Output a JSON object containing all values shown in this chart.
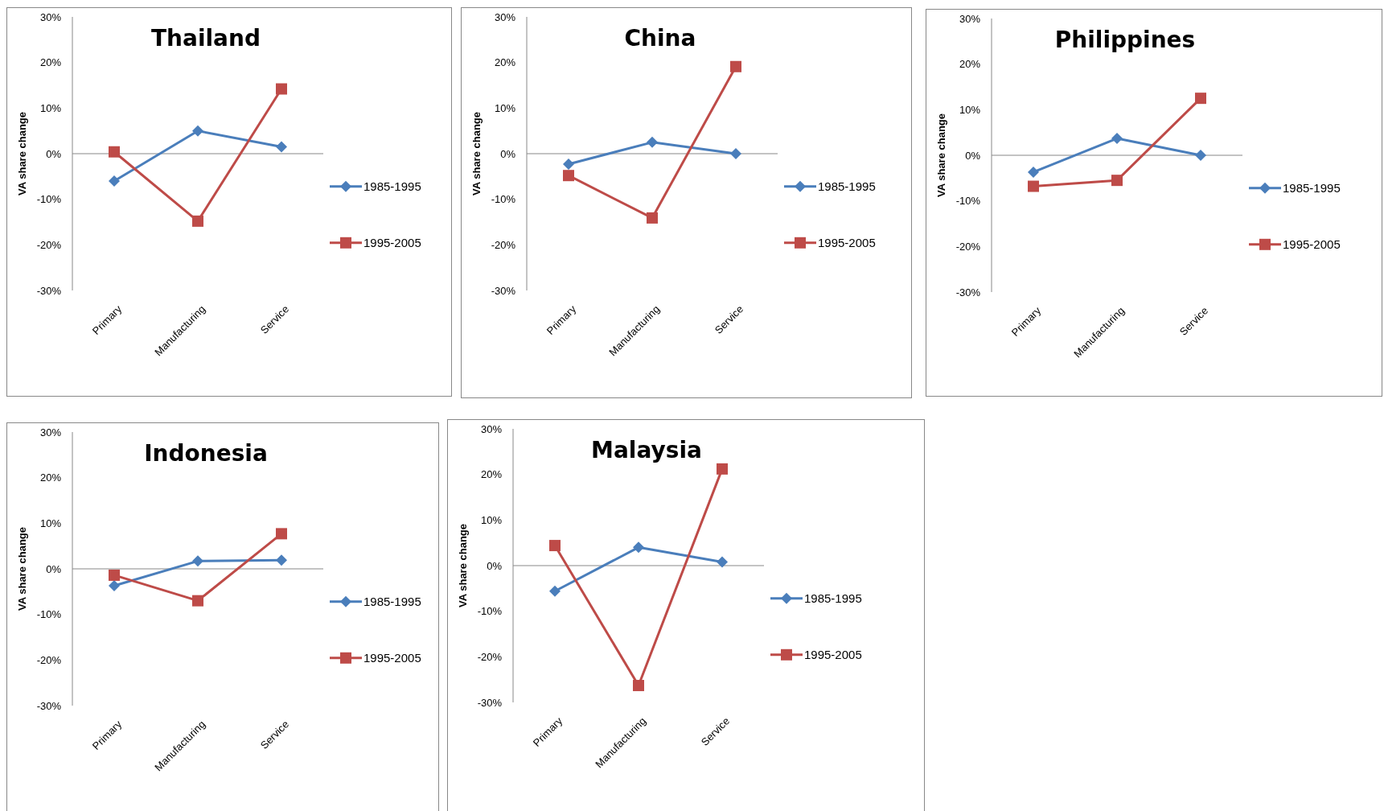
{
  "chart_data": [
    {
      "type": "line",
      "title": "Thailand",
      "ylabel": "VA share change",
      "categories": [
        "Primary",
        "Manufacturing",
        "Service"
      ],
      "ylim": [
        -30,
        30
      ],
      "yticks": [
        {
          "value": 30,
          "label": "30%"
        },
        {
          "value": 20,
          "label": "20%"
        },
        {
          "value": 10,
          "label": "10%"
        },
        {
          "value": 0,
          "label": "0%"
        },
        {
          "value": -10,
          "label": "-10%"
        },
        {
          "value": -20,
          "label": "-20%"
        },
        {
          "value": -30,
          "label": "-30%"
        }
      ],
      "legend": "right",
      "series": [
        {
          "name": "1985-1995",
          "color": "#4a7ebb",
          "marker": "diamond",
          "values": [
            -6,
            5,
            1.5
          ]
        },
        {
          "name": "1995-2005",
          "color": "#be4b48",
          "marker": "square",
          "values": [
            0.4,
            -14.8,
            14.2
          ]
        }
      ]
    },
    {
      "type": "line",
      "title": "China",
      "ylabel": "VA share change",
      "categories": [
        "Primary",
        "Manufacturing",
        "Service"
      ],
      "ylim": [
        -30,
        30
      ],
      "yticks": [
        {
          "value": 30,
          "label": "30%"
        },
        {
          "value": 20,
          "label": "20%"
        },
        {
          "value": 10,
          "label": "10%"
        },
        {
          "value": 0,
          "label": "0%"
        },
        {
          "value": -10,
          "label": "-10%"
        },
        {
          "value": -20,
          "label": "-20%"
        },
        {
          "value": -30,
          "label": "-30%"
        }
      ],
      "legend": "right",
      "series": [
        {
          "name": "1985-1995",
          "color": "#4a7ebb",
          "marker": "diamond",
          "values": [
            -2.3,
            2.5,
            0
          ]
        },
        {
          "name": "1995-2005",
          "color": "#be4b48",
          "marker": "square",
          "values": [
            -4.8,
            -14.1,
            19.1
          ]
        }
      ]
    },
    {
      "type": "line",
      "title": "Philippines",
      "ylabel": "VA share change",
      "categories": [
        "Primary",
        "Manufacturing",
        "Service"
      ],
      "ylim": [
        -30,
        30
      ],
      "yticks": [
        {
          "value": 30,
          "label": "30%"
        },
        {
          "value": 20,
          "label": "20%"
        },
        {
          "value": 10,
          "label": "10%"
        },
        {
          "value": 0,
          "label": "0%"
        },
        {
          "value": -10,
          "label": "-10%"
        },
        {
          "value": -20,
          "label": "-20%"
        },
        {
          "value": -30,
          "label": "-30%"
        }
      ],
      "legend": "right",
      "series": [
        {
          "name": "1985-1995",
          "color": "#4a7ebb",
          "marker": "diamond",
          "values": [
            -3.7,
            3.7,
            0
          ]
        },
        {
          "name": "1995-2005",
          "color": "#be4b48",
          "marker": "square",
          "values": [
            -6.8,
            -5.5,
            12.5
          ]
        }
      ]
    },
    {
      "type": "line",
      "title": "Indonesia",
      "ylabel": "VA share change",
      "categories": [
        "Primary",
        "Manufacturing",
        "Service"
      ],
      "ylim": [
        -30,
        30
      ],
      "yticks": [
        {
          "value": 30,
          "label": "30%"
        },
        {
          "value": 20,
          "label": "20%"
        },
        {
          "value": 10,
          "label": "10%"
        },
        {
          "value": 0,
          "label": "0%"
        },
        {
          "value": -10,
          "label": "-10%"
        },
        {
          "value": -20,
          "label": "-20%"
        },
        {
          "value": -30,
          "label": "-30%"
        }
      ],
      "legend": "right",
      "series": [
        {
          "name": "1985-1995",
          "color": "#4a7ebb",
          "marker": "diamond",
          "values": [
            -3.7,
            1.7,
            1.9
          ]
        },
        {
          "name": "1995-2005",
          "color": "#be4b48",
          "marker": "square",
          "values": [
            -1.4,
            -7,
            7.7
          ]
        }
      ]
    },
    {
      "type": "line",
      "title": "Malaysia",
      "ylabel": "VA share change",
      "categories": [
        "Primary",
        "Manufacturing",
        "Service"
      ],
      "ylim": [
        -30,
        30
      ],
      "yticks": [
        {
          "value": 30,
          "label": "30%"
        },
        {
          "value": 20,
          "label": "20%"
        },
        {
          "value": 10,
          "label": "10%"
        },
        {
          "value": 0,
          "label": "0%"
        },
        {
          "value": -10,
          "label": "-10%"
        },
        {
          "value": -20,
          "label": "-20%"
        },
        {
          "value": -30,
          "label": "-30%"
        }
      ],
      "legend": "right",
      "series": [
        {
          "name": "1985-1995",
          "color": "#4a7ebb",
          "marker": "diamond",
          "values": [
            -5.6,
            4,
            0.8
          ]
        },
        {
          "name": "1995-2005",
          "color": "#be4b48",
          "marker": "square",
          "values": [
            4.4,
            -26.3,
            21.2
          ]
        }
      ]
    }
  ]
}
